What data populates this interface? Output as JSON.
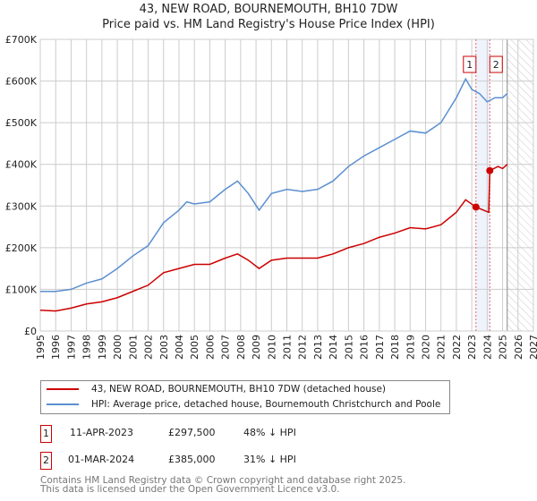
{
  "chart_data": {
    "type": "line",
    "title": "43, NEW ROAD, BOURNEMOUTH, BH10 7DW",
    "subtitle": "Price paid vs. HM Land Registry's House Price Index (HPI)",
    "xlim": [
      1995,
      2027
    ],
    "ylim": [
      0,
      700000
    ],
    "x_ticks": [
      "1995",
      "1996",
      "1997",
      "1998",
      "1999",
      "2000",
      "2001",
      "2002",
      "2003",
      "2004",
      "2005",
      "2006",
      "2007",
      "2008",
      "2009",
      "2010",
      "2011",
      "2012",
      "2013",
      "2014",
      "2015",
      "2016",
      "2017",
      "2018",
      "2019",
      "2020",
      "2021",
      "2022",
      "2023",
      "2024",
      "2025",
      "2026",
      "2027"
    ],
    "y_ticks": [
      {
        "v": 0,
        "label": "£0"
      },
      {
        "v": 100000,
        "label": "£100K"
      },
      {
        "v": 200000,
        "label": "£200K"
      },
      {
        "v": 300000,
        "label": "£300K"
      },
      {
        "v": 400000,
        "label": "£400K"
      },
      {
        "v": 500000,
        "label": "£500K"
      },
      {
        "v": 600000,
        "label": "£600K"
      },
      {
        "v": 700000,
        "label": "£700K"
      }
    ],
    "grid": true,
    "forecast_start": 2025.3,
    "series": [
      {
        "name": "43, NEW ROAD, BOURNEMOUTH, BH10 7DW (detached house)",
        "color": "#cc0000",
        "x": [
          1995,
          1996,
          1997,
          1998,
          1999,
          2000,
          2001,
          2002,
          2003,
          2004,
          2005,
          2006,
          2007,
          2007.8,
          2008.5,
          2009.2,
          2010,
          2011,
          2012,
          2013,
          2014,
          2015,
          2016,
          2017,
          2018,
          2019,
          2020,
          2021,
          2022,
          2022.6,
          2023.27,
          2024.1,
          2024.17,
          2024.7,
          2025,
          2025.3
        ],
        "y": [
          50000,
          48000,
          55000,
          65000,
          70000,
          80000,
          95000,
          110000,
          140000,
          150000,
          160000,
          160000,
          175000,
          185000,
          170000,
          150000,
          170000,
          175000,
          175000,
          175000,
          185000,
          200000,
          210000,
          225000,
          235000,
          248000,
          245000,
          255000,
          285000,
          315000,
          297500,
          285000,
          385000,
          395000,
          390000,
          400000
        ]
      },
      {
        "name": "HPI: Average price, detached house, Bournemouth Christchurch and Poole",
        "color": "#5b8fd0",
        "x": [
          1995,
          1996,
          1997,
          1998,
          1999,
          2000,
          2001,
          2002,
          2003,
          2004,
          2004.5,
          2005,
          2006,
          2007,
          2007.8,
          2008.5,
          2009.2,
          2010,
          2011,
          2012,
          2013,
          2014,
          2015,
          2016,
          2017,
          2018,
          2019,
          2020,
          2021,
          2022,
          2022.6,
          2023,
          2023.5,
          2024,
          2024.5,
          2025,
          2025.3
        ],
        "y": [
          95000,
          95000,
          100000,
          115000,
          125000,
          150000,
          180000,
          205000,
          260000,
          290000,
          310000,
          305000,
          310000,
          340000,
          360000,
          330000,
          290000,
          330000,
          340000,
          335000,
          340000,
          360000,
          395000,
          420000,
          440000,
          460000,
          480000,
          475000,
          500000,
          560000,
          605000,
          580000,
          570000,
          550000,
          560000,
          560000,
          570000
        ]
      }
    ],
    "annotations": [
      {
        "label": "1",
        "x": 2023.27,
        "y": 297500
      },
      {
        "label": "2",
        "x": 2024.17,
        "y": 385000
      }
    ]
  },
  "sales": [
    {
      "num": "1",
      "date": "11-APR-2023",
      "price": "£297,500",
      "hpi": "48% ↓ HPI"
    },
    {
      "num": "2",
      "date": "01-MAR-2024",
      "price": "£385,000",
      "hpi": "31% ↓ HPI"
    }
  ],
  "footer": [
    "Contains HM Land Registry data © Crown copyright and database right 2025.",
    "This data is licensed under the Open Government Licence v3.0."
  ]
}
